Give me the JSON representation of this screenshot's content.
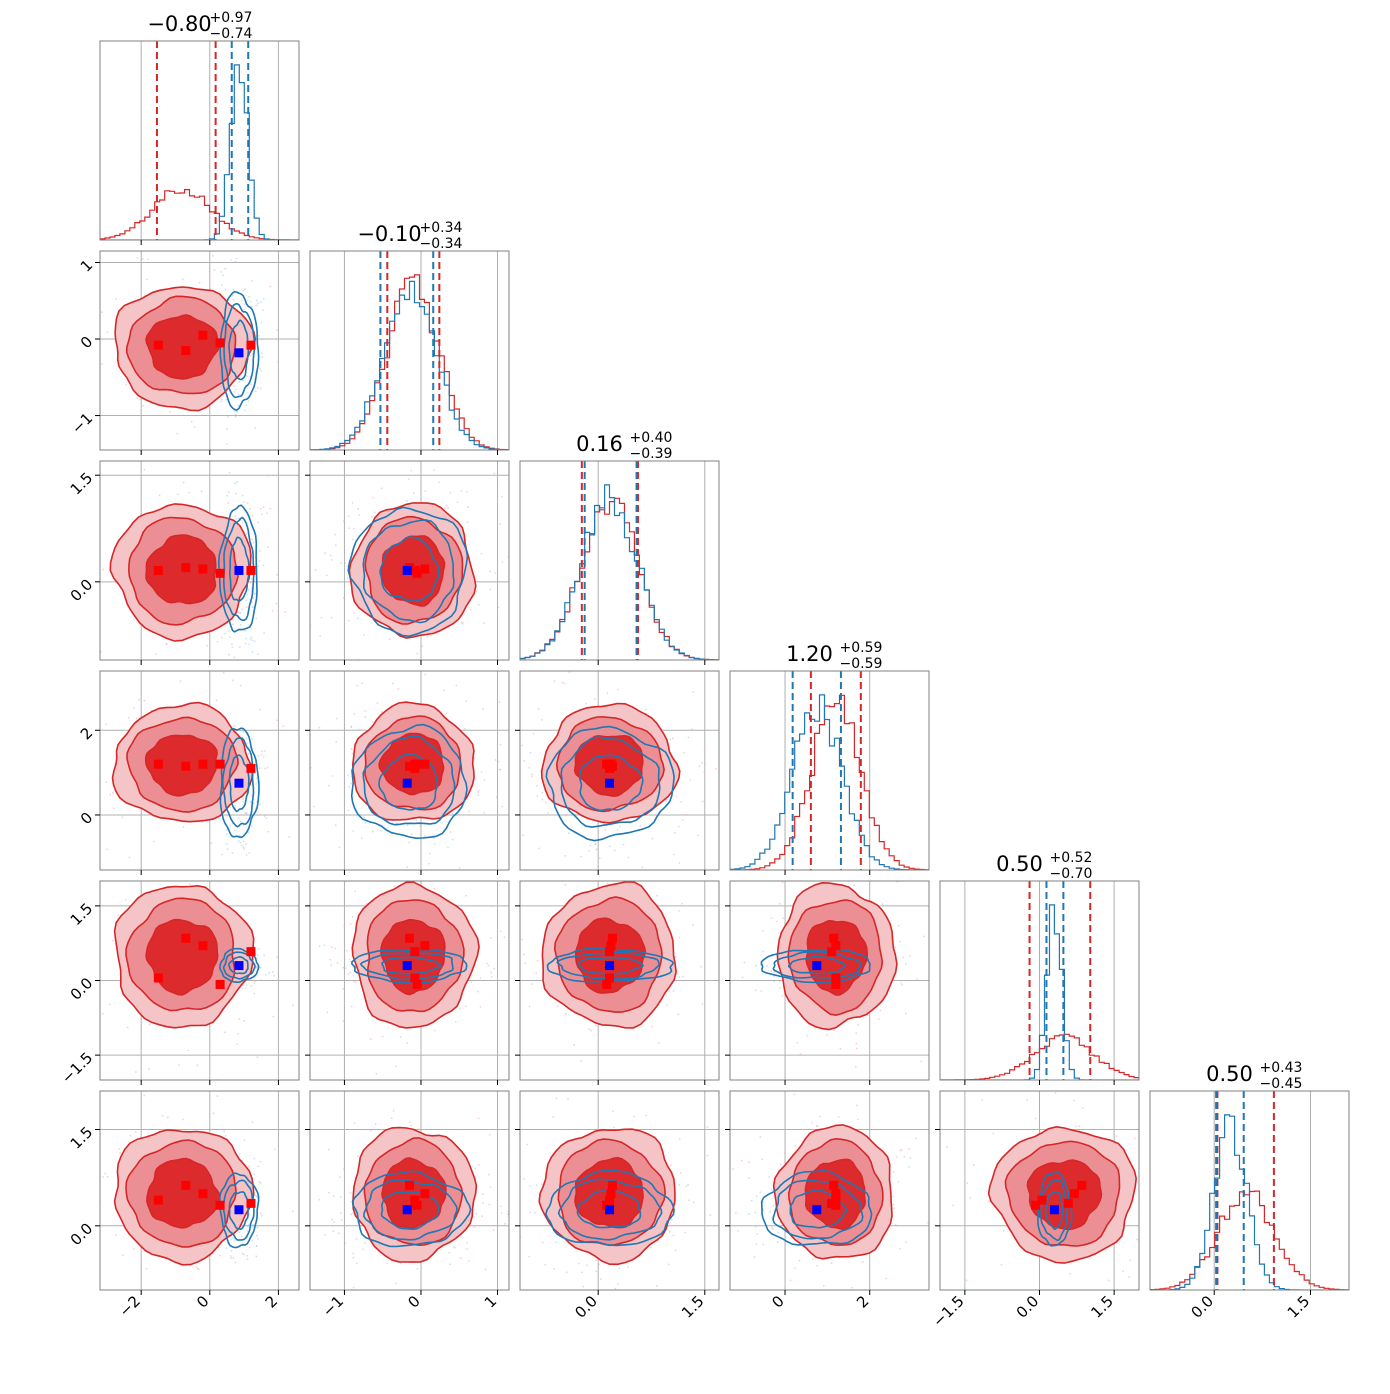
{
  "chart_data": {
    "type": "corner",
    "parameter_count": 6,
    "grid": true,
    "series": [
      {
        "name": "",
        "color": "#d62728"
      },
      {
        "name": "",
        "color": "#1f77b4"
      }
    ],
    "marker_colors": {
      "red_markers": "#ff0000",
      "blue_marker": "#0000ff"
    },
    "titles": [
      {
        "median": "−0.80",
        "plus": "+0.97",
        "minus": "−0.74"
      },
      {
        "median": "−0.10",
        "plus": "+0.34",
        "minus": "−0.34"
      },
      {
        "median": "0.16",
        "plus": "+0.40",
        "minus": "−0.39"
      },
      {
        "median": "1.20",
        "plus": "+0.59",
        "minus": "−0.59"
      },
      {
        "median": "0.50",
        "plus": "+0.52",
        "minus": "−0.70"
      },
      {
        "median": "0.50",
        "plus": "+0.43",
        "minus": "−0.45"
      }
    ],
    "axes": [
      {
        "range": [
          -3.2,
          2.6
        ],
        "ticks": [
          -2,
          0,
          2
        ],
        "tick_labels": [
          "−2",
          "0",
          "2"
        ]
      },
      {
        "range": [
          -1.45,
          1.15
        ],
        "ticks": [
          -1,
          0,
          1
        ],
        "tick_labels": [
          "−1",
          "0",
          "1"
        ]
      },
      {
        "range": [
          -1.1,
          1.7
        ],
        "ticks": [
          0.0,
          1.5
        ],
        "tick_labels": [
          "0.0",
          "1.5"
        ]
      },
      {
        "range": [
          -1.3,
          3.4
        ],
        "ticks": [
          0,
          2
        ],
        "tick_labels": [
          "0",
          "2"
        ]
      },
      {
        "range": [
          -2.0,
          2.0
        ],
        "ticks": [
          -1.5,
          0.0,
          1.5
        ],
        "tick_labels": [
          "−1.5",
          "0.0",
          "1.5"
        ]
      },
      {
        "range": [
          -1.0,
          2.1
        ],
        "ticks": [
          0.0,
          1.5
        ],
        "tick_labels": [
          "0.0",
          "1.5"
        ]
      }
    ],
    "red_posterior": {
      "means": [
        -0.8,
        -0.1,
        0.16,
        1.2,
        0.5,
        0.5
      ],
      "sigmas": [
        0.85,
        0.34,
        0.4,
        0.59,
        0.61,
        0.44
      ],
      "quantile_lines": [
        [
          -1.54,
          0.17
        ],
        [
          -0.44,
          0.24
        ],
        [
          -0.23,
          0.56
        ],
        [
          0.61,
          1.79
        ],
        [
          -0.2,
          1.02
        ],
        [
          0.05,
          0.93
        ]
      ]
    },
    "blue_posterior": {
      "means": [
        0.85,
        -0.15,
        0.16,
        0.75,
        0.3,
        0.25
      ],
      "sigmas": [
        0.25,
        0.34,
        0.4,
        0.59,
        0.15,
        0.26
      ],
      "quantile_lines": [
        [
          0.64,
          1.12
        ],
        [
          -0.53,
          0.16
        ],
        [
          -0.19,
          0.54
        ],
        [
          0.18,
          1.32
        ],
        [
          0.14,
          0.48
        ],
        [
          0.03,
          0.46
        ]
      ]
    },
    "red_markers": [
      [
        -1.5,
        -0.08,
        0.16,
        1.2,
        0.05,
        0.4
      ],
      [
        -0.7,
        -0.15,
        0.2,
        1.15,
        0.85,
        0.63
      ],
      [
        0.3,
        -0.05,
        0.12,
        1.2,
        -0.08,
        0.32
      ],
      [
        1.2,
        -0.08,
        0.16,
        1.1,
        0.58,
        0.35
      ],
      [
        -0.2,
        0.05,
        0.18,
        1.2,
        0.7,
        0.5
      ]
    ],
    "blue_marker": [
      0.85,
      -0.18,
      0.16,
      0.75,
      0.3,
      0.25
    ]
  }
}
